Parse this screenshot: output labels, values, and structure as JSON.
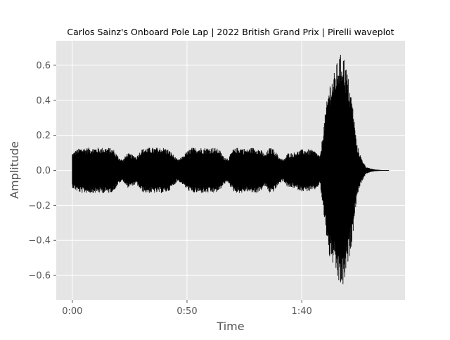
{
  "chart_data": {
    "type": "area",
    "title": "Carlos Sainz's Onboard Pole Lap | 2022 British Grand Prix | Pirelli waveplot",
    "xlabel": "Time",
    "ylabel": "Amplitude",
    "xlim": [
      -7,
      145
    ],
    "ylim": [
      -0.74,
      0.74
    ],
    "x_ticks": [
      0,
      50,
      100
    ],
    "x_tick_labels": [
      "0:00",
      "0:50",
      "1:40"
    ],
    "y_ticks": [
      -0.6,
      -0.4,
      -0.2,
      0.0,
      0.2,
      0.4,
      0.6
    ],
    "y_tick_labels": [
      "−0.6",
      "−0.4",
      "−0.2",
      "0.0",
      "0.2",
      "0.4",
      "0.6"
    ],
    "grid": true,
    "style": "ggplot",
    "colors": {
      "wave": "#000000",
      "background": "#e5e5e5",
      "grid": "#ffffff",
      "text": "#555555",
      "title": "#000000"
    },
    "series": [
      {
        "time_s": [
          0,
          2,
          4,
          6,
          8,
          10,
          12,
          14,
          16,
          18,
          20,
          22,
          24,
          26,
          28,
          30,
          32,
          34,
          36,
          38,
          40,
          42,
          44,
          46,
          48,
          50,
          52,
          54,
          56,
          58,
          60,
          62,
          64,
          66,
          68,
          70,
          72,
          74,
          76,
          78,
          80,
          82,
          84,
          86,
          88,
          90,
          92,
          94,
          96,
          98,
          100,
          102,
          104,
          106,
          108,
          110,
          112,
          114,
          116,
          118,
          120,
          122,
          124,
          126,
          128,
          130,
          132,
          134,
          136,
          138
        ],
        "amplitude_envelope": [
          0.1,
          0.12,
          0.13,
          0.13,
          0.13,
          0.13,
          0.13,
          0.13,
          0.13,
          0.12,
          0.08,
          0.06,
          0.1,
          0.09,
          0.08,
          0.12,
          0.13,
          0.13,
          0.13,
          0.13,
          0.13,
          0.12,
          0.09,
          0.06,
          0.08,
          0.11,
          0.13,
          0.13,
          0.13,
          0.13,
          0.13,
          0.13,
          0.12,
          0.08,
          0.07,
          0.12,
          0.13,
          0.13,
          0.12,
          0.13,
          0.13,
          0.12,
          0.09,
          0.13,
          0.12,
          0.08,
          0.06,
          0.1,
          0.1,
          0.11,
          0.12,
          0.12,
          0.12,
          0.11,
          0.08,
          0.3,
          0.5,
          0.55,
          0.65,
          0.68,
          0.55,
          0.4,
          0.15,
          0.07,
          0.02,
          0.01,
          0.005,
          0.003,
          0.002,
          0.001
        ]
      }
    ]
  }
}
